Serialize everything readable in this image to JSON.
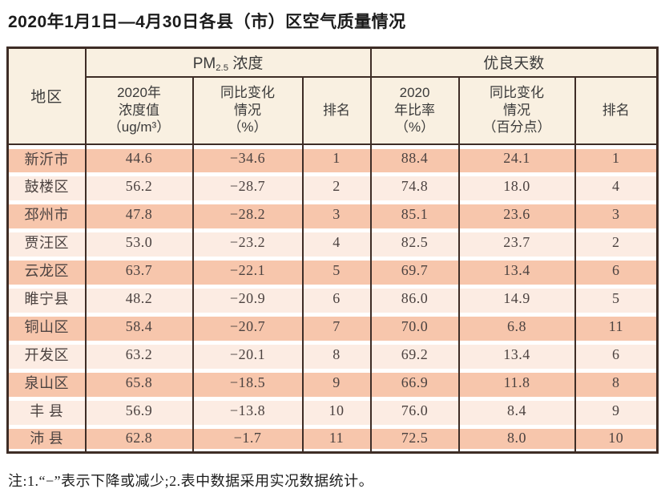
{
  "title": "2020年1月1日—4月30日各县（市）区空气质量情况",
  "note": "注:1.“−”表示下降或减少;2.表中数据采用实况数据统计。",
  "colors": {
    "row_dark": "#f7c6ac",
    "row_light": "#fcece3",
    "header_bg": "#f9f0e1",
    "border": "#3e2d26"
  },
  "table": {
    "corner_header": "地区",
    "group_pm25": {
      "prefix": "PM",
      "subscript": "2.5",
      "suffix": " 浓度"
    },
    "group_days": "优良天数",
    "sub_headers": [
      "2020年\n浓度值\n（ug/m³）",
      "同比变化\n情况\n（%）",
      "排名",
      "2020\n年比率\n（%）",
      "同比变化\n情况\n（百分点）",
      "排名"
    ],
    "rows": [
      [
        "新沂市",
        "44.6",
        "−34.6",
        "1",
        "88.4",
        "24.1",
        "1"
      ],
      [
        "鼓楼区",
        "56.2",
        "−28.7",
        "2",
        "74.8",
        "18.0",
        "4"
      ],
      [
        "邳州市",
        "47.8",
        "−28.2",
        "3",
        "85.1",
        "23.6",
        "3"
      ],
      [
        "贾汪区",
        "53.0",
        "−23.2",
        "4",
        "82.5",
        "23.7",
        "2"
      ],
      [
        "云龙区",
        "63.7",
        "−22.1",
        "5",
        "69.7",
        "13.4",
        "6"
      ],
      [
        "睢宁县",
        "48.2",
        "−20.9",
        "6",
        "86.0",
        "14.9",
        "5"
      ],
      [
        "铜山区",
        "58.4",
        "−20.7",
        "7",
        "70.0",
        "6.8",
        "11"
      ],
      [
        "开发区",
        "63.2",
        "−20.1",
        "8",
        "69.2",
        "13.4",
        "6"
      ],
      [
        "泉山区",
        "65.8",
        "−18.5",
        "9",
        "66.9",
        "11.8",
        "8"
      ],
      [
        "丰 县",
        "56.9",
        "−13.8",
        "10",
        "76.0",
        "8.4",
        "9"
      ],
      [
        "沛 县",
        "62.8",
        "−1.7",
        "11",
        "72.5",
        "8.0",
        "10"
      ]
    ]
  }
}
